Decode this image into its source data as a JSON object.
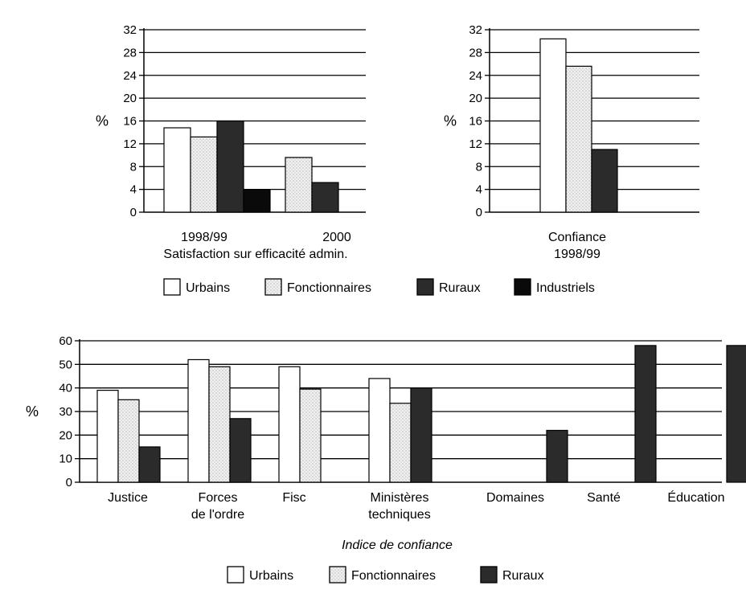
{
  "colors": {
    "Urbains": "#ffffff",
    "Fonctionnaires": "#e6e6e6",
    "Ruraux": "#2b2b2b",
    "Industriels": "#0a0a0a"
  },
  "legend_top": [
    "Urbains",
    "Fonctionnaires",
    "Ruraux",
    "Industriels"
  ],
  "legend_bottom": [
    "Urbains",
    "Fonctionnaires",
    "Ruraux"
  ],
  "chart_data": [
    {
      "type": "bar",
      "categories": [
        "1998/99",
        "2000"
      ],
      "group_title": "Satisfaction sur efficacité admin.",
      "ylabel": "%",
      "ylim": [
        0,
        32
      ],
      "yticks": [
        0,
        4,
        8,
        12,
        16,
        20,
        24,
        28,
        32
      ],
      "grid": true,
      "series": [
        {
          "name": "Urbains",
          "values": [
            14.8,
            null
          ]
        },
        {
          "name": "Fonctionnaires",
          "values": [
            13.2,
            9.6
          ]
        },
        {
          "name": "Ruraux",
          "values": [
            16,
            5.2
          ]
        },
        {
          "name": "Industriels",
          "values": [
            4,
            null
          ]
        }
      ]
    },
    {
      "type": "bar",
      "categories": [
        "Confiance\n1998/99"
      ],
      "ylabel": "%",
      "ylim": [
        0,
        32
      ],
      "yticks": [
        0,
        4,
        8,
        12,
        16,
        20,
        24,
        28,
        32
      ],
      "grid": true,
      "series": [
        {
          "name": "Urbains",
          "values": [
            30.4
          ]
        },
        {
          "name": "Fonctionnaires",
          "values": [
            25.6
          ]
        },
        {
          "name": "Ruraux",
          "values": [
            11
          ]
        }
      ]
    },
    {
      "type": "bar",
      "categories": [
        "Justice",
        "Forces\nde l'ordre",
        "Fisc",
        "Ministères\ntechniques",
        "Domaines",
        "Santé",
        "Éducation"
      ],
      "xlabel": "Indice de confiance",
      "ylabel": "%",
      "ylim": [
        0,
        60
      ],
      "yticks": [
        0,
        10,
        20,
        30,
        40,
        50,
        60
      ],
      "grid": true,
      "series": [
        {
          "name": "Urbains",
          "values": [
            39,
            52,
            49,
            44,
            null,
            null,
            null
          ]
        },
        {
          "name": "Fonctionnaires",
          "values": [
            35,
            49,
            39.5,
            33.5,
            null,
            null,
            null
          ]
        },
        {
          "name": "Ruraux",
          "values": [
            15,
            27,
            null,
            40,
            22,
            58,
            58
          ]
        }
      ]
    }
  ]
}
